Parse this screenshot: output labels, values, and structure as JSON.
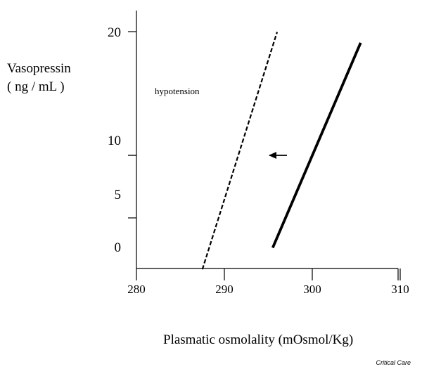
{
  "chart_data": {
    "type": "line",
    "xlabel": "Plasmatic osmolality (mOsmol/Kg)",
    "ylabel_lines": [
      "Vasopressin",
      "( ng / mL )"
    ],
    "x_ticks": [
      280,
      290,
      300,
      310
    ],
    "y_ticks": [
      {
        "value": 0,
        "label": "0"
      },
      {
        "value": 5,
        "label": "5"
      },
      {
        "value": 10,
        "label": "10"
      },
      {
        "value": 20,
        "label": "20"
      }
    ],
    "series": [
      {
        "style": "dashed",
        "x": [
          287.5,
          296
        ],
        "y": [
          -2,
          20
        ]
      },
      {
        "style": "solid",
        "x": [
          295.5,
          305.5
        ],
        "y": [
          0,
          19
        ]
      }
    ],
    "annotations": [
      {
        "text": "hypotension"
      },
      {
        "symbol": "left-arrow",
        "x": 296.5,
        "y": 9
      }
    ],
    "grid": false
  },
  "credit": "Critical Care"
}
